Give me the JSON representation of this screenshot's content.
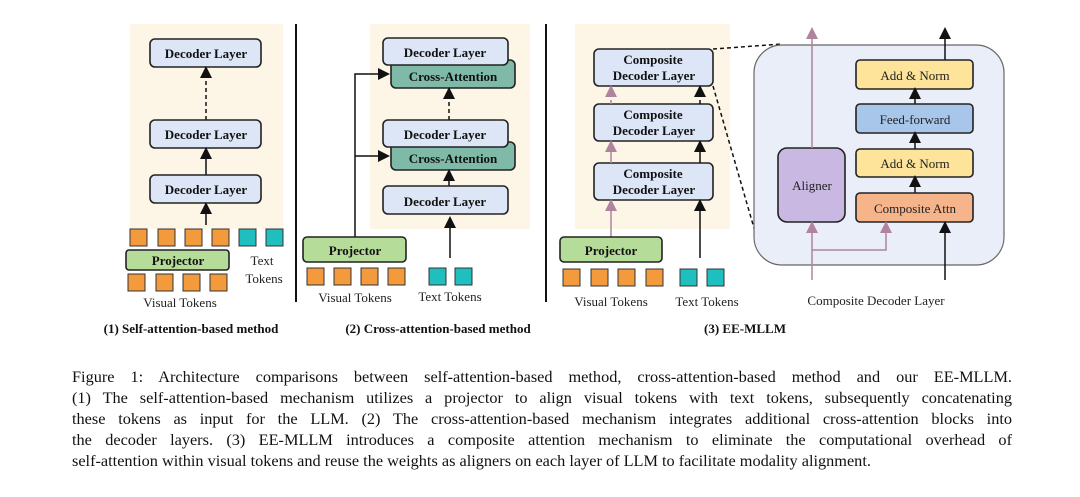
{
  "panel1": {
    "decoder": "Decoder Layer",
    "projector": "Projector",
    "text_tokens_1": "Text",
    "text_tokens_2": "Tokens",
    "visual_tokens": "Visual Tokens",
    "title": "(1) Self-attention-based method"
  },
  "panel2": {
    "decoder": "Decoder Layer",
    "cross": "Cross-Attention",
    "projector": "Projector",
    "visual_tokens": "Visual Tokens",
    "text_tokens": "Text Tokens",
    "title": "(2) Cross-attention-based method"
  },
  "panel3": {
    "comp1": "Composite",
    "comp2": "Decoder Layer",
    "projector": "Projector",
    "visual_tokens": "Visual Tokens",
    "text_tokens": "Text Tokens",
    "title": "(3) EE-MLLM",
    "detail": {
      "add_norm": "Add & Norm",
      "ff": "Feed-forward",
      "attn": "Composite Attn",
      "aligner": "Aligner",
      "label": "Composite Decoder Layer"
    }
  },
  "colors": {
    "beige": "#fdf6e6",
    "decoder": "#dce6f7",
    "cross": "#7fb9a8",
    "projector": "#b6dc9a",
    "visual": "#f39a3d",
    "text": "#1fbfbf",
    "yellow": "#fde49a",
    "ffblue": "#a8c6ea",
    "orange": "#f6b48a",
    "purple": "#c9b8e2",
    "pink": "#b0849e"
  },
  "caption": [
    "Figure 1: Architecture comparisons between self-attention-based method, cross-attention-based method and our EE-MLLM.",
    "(1) The self-attention-based mechanism utilizes a projector to align visual tokens with text tokens, subsequently concatenating",
    "these tokens as input for the LLM. (2) The cross-attention-based mechanism integrates additional cross-attention blocks into",
    "the decoder layers. (3) EE-MLLM introduces a composite attention mechanism to eliminate the computational overhead of",
    "self-attention within visual tokens and reuse the weights as aligners on each layer of LLM to facilitate modality alignment."
  ]
}
